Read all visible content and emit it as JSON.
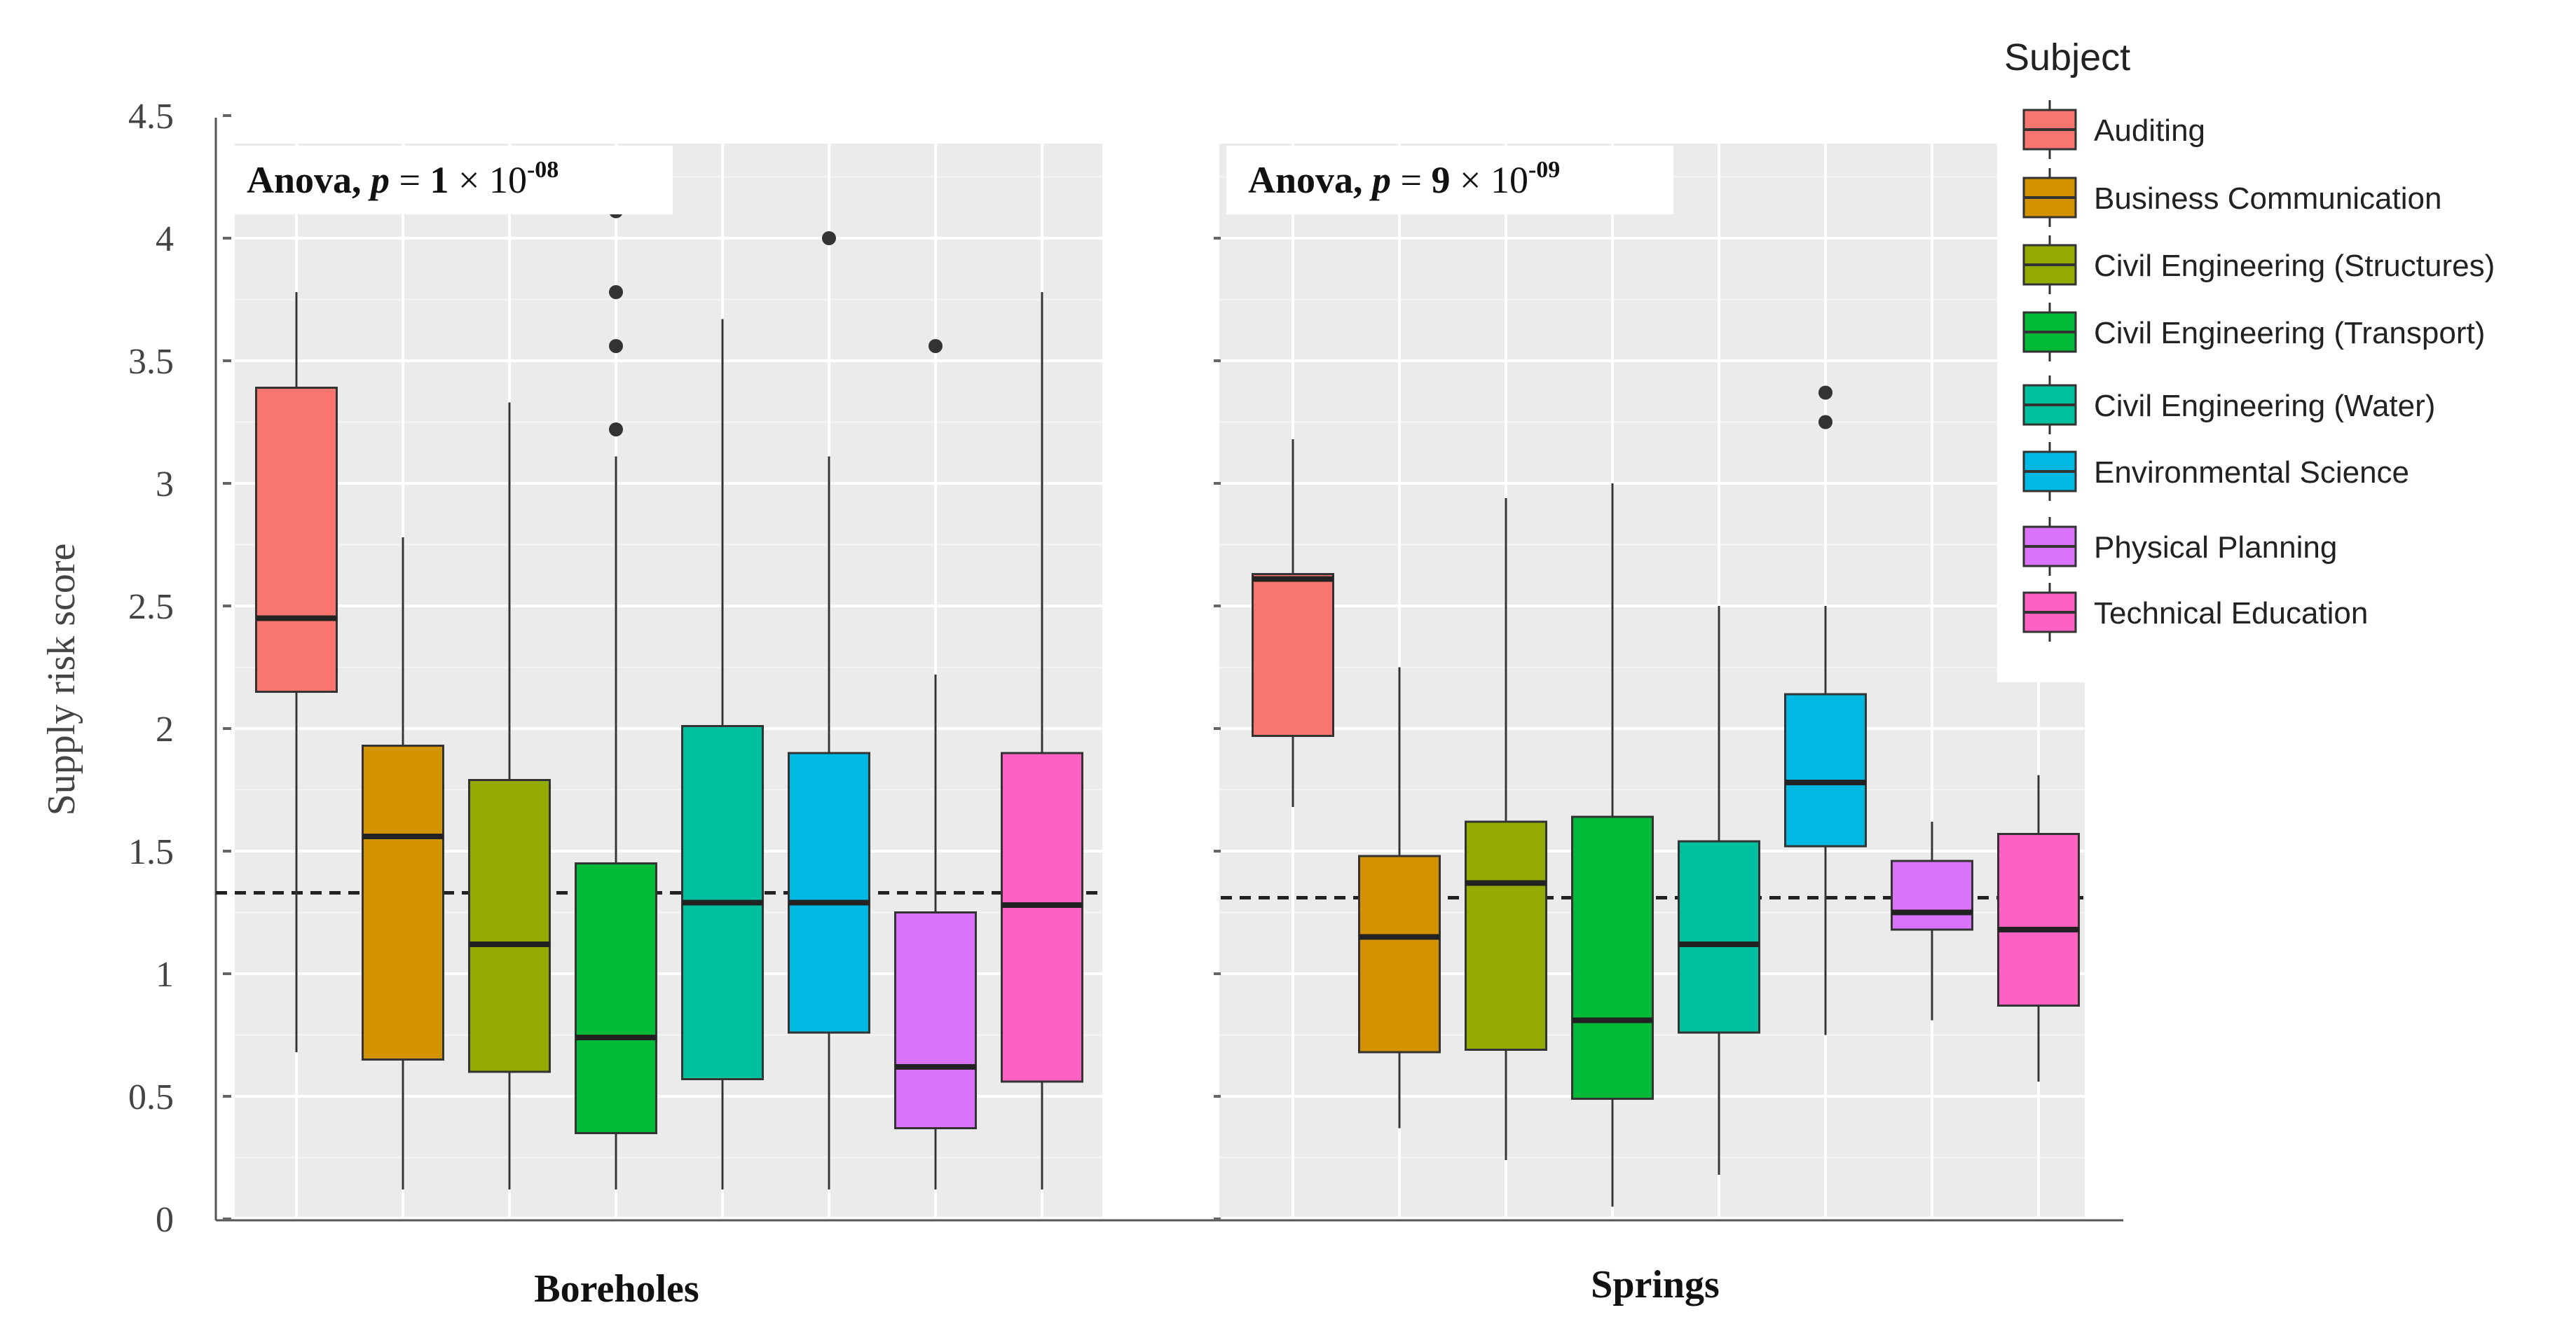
{
  "chart_data": {
    "type": "boxplot",
    "ylabel": "Supply risk score",
    "ylim": [
      0,
      4.5
    ],
    "yticks": [
      "0",
      "0.5",
      "1",
      "1.5",
      "2",
      "2.5",
      "3",
      "3.5",
      "4",
      "4.5"
    ],
    "grid": true,
    "legend_position": "right",
    "legend": {
      "title": "Subject",
      "entries": [
        {
          "label": "Auditing",
          "color": "#f8766d"
        },
        {
          "label": "Business Communication",
          "color": "#d39200"
        },
        {
          "label": "Civil Engineering (Structures)",
          "color": "#93aa00"
        },
        {
          "label": "Civil Engineering (Transport)",
          "color": "#00ba38"
        },
        {
          "label": "Civil Engineering (Water)",
          "color": "#00c19f"
        },
        {
          "label": "Environmental Science",
          "color": "#00b9e3"
        },
        {
          "label": "Physical Planning",
          "color": "#db72fb"
        },
        {
          "label": "Technical Education",
          "color": "#ff61c3"
        }
      ]
    },
    "panels": [
      {
        "label": "Boreholes",
        "annotation": {
          "prefix": "Anova, ",
          "p": "p",
          "eq": " = ",
          "value": "1 ",
          "times": "× 10",
          "exp": "-08"
        },
        "reference_line": 1.33,
        "boxes": [
          {
            "subject": "Auditing",
            "min": 0.68,
            "q1": 2.15,
            "median": 2.45,
            "q3": 3.39,
            "max": 3.78,
            "outliers": []
          },
          {
            "subject": "Business Communication",
            "min": 0.12,
            "q1": 0.65,
            "median": 1.56,
            "q3": 1.93,
            "max": 2.78,
            "outliers": []
          },
          {
            "subject": "Civil Engineering (Structures)",
            "min": 0.12,
            "q1": 0.6,
            "median": 1.12,
            "q3": 1.79,
            "max": 3.33,
            "outliers": []
          },
          {
            "subject": "Civil Engineering (Transport)",
            "min": 0.12,
            "q1": 0.35,
            "median": 0.74,
            "q3": 1.45,
            "max": 3.11,
            "outliers": [
              3.22,
              3.56,
              3.78,
              4.11
            ]
          },
          {
            "subject": "Civil Engineering (Water)",
            "min": 0.12,
            "q1": 0.57,
            "median": 1.29,
            "q3": 2.01,
            "max": 3.67,
            "outliers": []
          },
          {
            "subject": "Environmental Science",
            "min": 0.12,
            "q1": 0.76,
            "median": 1.29,
            "q3": 1.9,
            "max": 3.11,
            "outliers": [
              4.0
            ]
          },
          {
            "subject": "Physical Planning",
            "min": 0.12,
            "q1": 0.37,
            "median": 0.62,
            "q3": 1.25,
            "max": 2.22,
            "outliers": [
              3.56
            ]
          },
          {
            "subject": "Technical Education",
            "min": 0.12,
            "q1": 0.56,
            "median": 1.28,
            "q3": 1.9,
            "max": 3.78,
            "outliers": []
          }
        ]
      },
      {
        "label": "Springs",
        "annotation": {
          "prefix": "Anova, ",
          "p": "p",
          "eq": " = ",
          "value": "9 ",
          "times": "× 10",
          "exp": "-09"
        },
        "reference_line": 1.31,
        "boxes": [
          {
            "subject": "Auditing",
            "min": 1.68,
            "q1": 1.97,
            "median": 2.61,
            "q3": 2.63,
            "max": 3.18,
            "outliers": []
          },
          {
            "subject": "Business Communication",
            "min": 0.37,
            "q1": 0.68,
            "median": 1.15,
            "q3": 1.48,
            "max": 2.25,
            "outliers": []
          },
          {
            "subject": "Civil Engineering (Structures)",
            "min": 0.24,
            "q1": 0.69,
            "median": 1.37,
            "q3": 1.62,
            "max": 2.94,
            "outliers": []
          },
          {
            "subject": "Civil Engineering (Transport)",
            "min": 0.05,
            "q1": 0.49,
            "median": 0.81,
            "q3": 1.64,
            "max": 3.0,
            "outliers": []
          },
          {
            "subject": "Civil Engineering (Water)",
            "min": 0.18,
            "q1": 0.76,
            "median": 1.12,
            "q3": 1.54,
            "max": 2.5,
            "outliers": []
          },
          {
            "subject": "Environmental Science",
            "min": 0.75,
            "q1": 1.52,
            "median": 1.78,
            "q3": 2.14,
            "max": 2.5,
            "outliers": [
              3.25,
              3.37
            ]
          },
          {
            "subject": "Physical Planning",
            "min": 0.81,
            "q1": 1.18,
            "median": 1.25,
            "q3": 1.46,
            "max": 1.62,
            "outliers": []
          },
          {
            "subject": "Technical Education",
            "min": 0.56,
            "q1": 0.87,
            "median": 1.18,
            "q3": 1.57,
            "max": 1.81,
            "outliers": []
          }
        ]
      }
    ]
  }
}
